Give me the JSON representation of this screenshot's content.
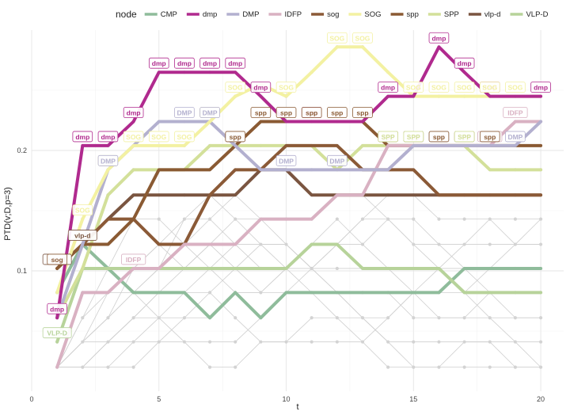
{
  "chart_data": {
    "type": "line",
    "xlabel": "t",
    "ylabel": "PTD(v;D,p=3)",
    "xlim": [
      0,
      20.9
    ],
    "ylim": [
      0.0,
      0.3
    ],
    "x_ticks": [
      0,
      5,
      10,
      15,
      20
    ],
    "y_ticks": [
      0.1,
      0.2
    ],
    "grid": true,
    "legend": {
      "title": "node",
      "placement": "top",
      "entries": [
        {
          "name": "CMP",
          "color": "#8fbc9b"
        },
        {
          "name": "dmp",
          "color": "#b02a8e"
        },
        {
          "name": "DMP",
          "color": "#b3b0cf"
        },
        {
          "name": "IDFP",
          "color": "#d9b1c2"
        },
        {
          "name": "sog",
          "color": "#8b5a37"
        },
        {
          "name": "SOG",
          "color": "#f3f1a2"
        },
        {
          "name": "spp",
          "color": "#8a5a33"
        },
        {
          "name": "SPP",
          "color": "#d3e09a"
        },
        {
          "name": "vlp-d",
          "color": "#7a5540"
        },
        {
          "name": "VLP-D",
          "color": "#b7d39a"
        }
      ]
    },
    "x": [
      1,
      2,
      3,
      4,
      5,
      6,
      7,
      8,
      9,
      10,
      11,
      12,
      13,
      14,
      15,
      16,
      17,
      18,
      19,
      20
    ],
    "series": [
      {
        "name": "dmp",
        "color": "#b02a8e",
        "values": [
          0.061,
          0.204,
          0.204,
          0.224,
          0.265,
          0.265,
          0.265,
          0.265,
          0.245,
          0.224,
          0.224,
          0.224,
          0.224,
          0.245,
          0.245,
          0.286,
          0.265,
          0.245,
          0.245,
          0.245
        ]
      },
      {
        "name": "SOG",
        "color": "#f3f1a2",
        "values": [
          0.082,
          0.143,
          0.184,
          0.204,
          0.204,
          0.204,
          0.224,
          0.245,
          0.255,
          0.245,
          0.265,
          0.286,
          0.286,
          0.265,
          0.245,
          0.245,
          0.245,
          0.245,
          0.245,
          0.245
        ]
      },
      {
        "name": "DMP",
        "color": "#b3b0cf",
        "values": [
          0.061,
          0.122,
          0.184,
          0.204,
          0.224,
          0.224,
          0.224,
          0.204,
          0.184,
          0.184,
          0.184,
          0.184,
          0.184,
          0.184,
          0.204,
          0.204,
          0.204,
          0.204,
          0.204,
          0.224
        ]
      },
      {
        "name": "IDFP",
        "color": "#d9b1c2",
        "values": [
          0.02,
          0.082,
          0.082,
          0.102,
          0.102,
          0.122,
          0.122,
          0.122,
          0.143,
          0.143,
          0.143,
          0.163,
          0.163,
          0.204,
          0.204,
          0.204,
          0.204,
          0.204,
          0.224,
          0.224
        ]
      },
      {
        "name": "spp",
        "color": "#8a5a33",
        "values": [
          0.102,
          0.122,
          0.122,
          0.143,
          0.184,
          0.184,
          0.184,
          0.204,
          0.224,
          0.224,
          0.224,
          0.224,
          0.224,
          0.204,
          0.204,
          0.204,
          0.204,
          0.204,
          0.204,
          0.204
        ]
      },
      {
        "name": "sog",
        "color": "#8b5a37",
        "values": [
          0.102,
          0.122,
          0.143,
          0.143,
          0.122,
          0.122,
          0.163,
          0.184,
          0.184,
          0.204,
          0.204,
          0.204,
          0.184,
          0.184,
          0.184,
          0.163,
          0.163,
          0.163,
          0.163,
          0.163
        ]
      },
      {
        "name": "vlp-d",
        "color": "#7a5540",
        "values": [
          0.102,
          0.122,
          0.143,
          0.163,
          0.163,
          0.163,
          0.163,
          0.163,
          0.184,
          0.184,
          0.163,
          0.163,
          0.163,
          0.163,
          0.163,
          0.163,
          0.163,
          0.163,
          0.163,
          0.163
        ]
      },
      {
        "name": "SPP",
        "color": "#d3e09a",
        "values": [
          0.061,
          0.102,
          0.163,
          0.184,
          0.184,
          0.184,
          0.204,
          0.204,
          0.204,
          0.204,
          0.204,
          0.184,
          0.204,
          0.204,
          0.204,
          0.204,
          0.204,
          0.184,
          0.184,
          0.184
        ]
      },
      {
        "name": "VLP-D",
        "color": "#b7d39a",
        "values": [
          0.041,
          0.102,
          0.102,
          0.102,
          0.102,
          0.102,
          0.102,
          0.102,
          0.102,
          0.102,
          0.122,
          0.122,
          0.102,
          0.102,
          0.102,
          0.102,
          0.082,
          0.082,
          0.082,
          0.082
        ]
      },
      {
        "name": "CMP",
        "color": "#8fbc9b",
        "values": [
          0.082,
          0.122,
          0.102,
          0.082,
          0.082,
          0.082,
          0.061,
          0.082,
          0.061,
          0.082,
          0.082,
          0.082,
          0.082,
          0.082,
          0.082,
          0.082,
          0.102,
          0.102,
          0.102,
          0.102
        ]
      }
    ],
    "point_labels": [
      {
        "series": "dmp",
        "text": "dmp",
        "points": [
          1,
          2,
          3,
          4,
          5,
          6,
          7,
          8,
          9,
          11,
          14,
          16,
          17,
          18,
          20
        ]
      },
      {
        "series": "SOG",
        "text": "SOG",
        "points": [
          2,
          3,
          4,
          5,
          6,
          7,
          8,
          10,
          12,
          13,
          15,
          16,
          17,
          18,
          19
        ]
      },
      {
        "series": "DMP",
        "text": "DMP",
        "points": [
          3,
          6,
          7,
          8,
          10,
          12,
          15,
          16,
          18,
          19
        ]
      },
      {
        "series": "IDFP",
        "text": "IDFP",
        "points": [
          4,
          18,
          19
        ]
      },
      {
        "series": "spp",
        "text": "spp",
        "points": [
          8,
          9,
          10,
          11,
          12,
          13,
          14,
          15,
          16,
          17,
          18
        ]
      },
      {
        "series": "vlp-d",
        "text": "vlp-d",
        "points": [
          1,
          2
        ]
      },
      {
        "series": "SPP",
        "text": "SPP",
        "points": [
          14,
          15,
          17
        ]
      },
      {
        "series": "VLP-D",
        "text": "VLP-D",
        "points": [
          1
        ]
      },
      {
        "series": "sog",
        "text": "sog",
        "points": [
          1
        ]
      }
    ],
    "background_lines": [
      [
        0.02,
        0.041,
        0.082,
        0.102,
        0.122,
        0.102,
        0.122,
        0.102,
        0.082,
        0.102,
        0.122,
        0.143,
        0.122,
        0.102,
        0.082,
        0.061,
        0.061,
        0.061,
        0.061,
        0.061
      ],
      [
        0.02,
        0.041,
        0.061,
        0.082,
        0.102,
        0.122,
        0.143,
        0.163,
        0.143,
        0.122,
        0.102,
        0.082,
        0.082,
        0.082,
        0.061,
        0.061,
        0.061,
        0.082,
        0.082,
        0.082
      ],
      [
        0.02,
        0.02,
        0.041,
        0.061,
        0.082,
        0.102,
        0.122,
        0.143,
        0.143,
        0.143,
        0.143,
        0.163,
        0.163,
        0.143,
        0.122,
        0.102,
        0.102,
        0.102,
        0.102,
        0.102
      ],
      [
        0.02,
        0.02,
        0.02,
        0.041,
        0.041,
        0.061,
        0.082,
        0.102,
        0.122,
        0.122,
        0.102,
        0.082,
        0.061,
        0.041,
        0.041,
        0.041,
        0.041,
        0.041,
        0.041,
        0.041
      ],
      [
        0.02,
        0.041,
        0.061,
        0.082,
        0.061,
        0.041,
        0.041,
        0.041,
        0.061,
        0.082,
        0.102,
        0.122,
        0.143,
        0.143,
        0.122,
        0.122,
        0.102,
        0.082,
        0.061,
        0.061
      ],
      [
        0.02,
        0.061,
        0.102,
        0.143,
        0.143,
        0.122,
        0.102,
        0.082,
        0.082,
        0.082,
        0.082,
        0.082,
        0.061,
        0.061,
        0.082,
        0.102,
        0.122,
        0.143,
        0.143,
        0.143
      ],
      [
        0.02,
        0.02,
        0.041,
        0.041,
        0.061,
        0.061,
        0.061,
        0.082,
        0.082,
        0.102,
        0.122,
        0.122,
        0.122,
        0.143,
        0.143,
        0.122,
        0.122,
        0.122,
        0.122,
        0.122
      ],
      [
        0.02,
        0.041,
        0.041,
        0.061,
        0.082,
        0.082,
        0.102,
        0.122,
        0.122,
        0.122,
        0.102,
        0.102,
        0.102,
        0.102,
        0.102,
        0.102,
        0.082,
        0.061,
        0.041,
        0.02
      ],
      [
        0.02,
        0.02,
        0.02,
        0.02,
        0.041,
        0.041,
        0.02,
        0.02,
        0.041,
        0.041,
        0.061,
        0.061,
        0.061,
        0.041,
        0.02,
        0.02,
        0.041,
        0.041,
        0.02,
        0.02
      ],
      [
        0.02,
        0.061,
        0.082,
        0.082,
        0.102,
        0.143,
        0.163,
        0.143,
        0.122,
        0.102,
        0.102,
        0.122,
        0.143,
        0.163,
        0.163,
        0.143,
        0.143,
        0.143,
        0.122,
        0.122
      ],
      [
        0.02,
        0.041,
        0.061,
        0.102,
        0.122,
        0.143,
        0.143,
        0.122,
        0.102,
        0.102,
        0.082,
        0.061,
        0.041,
        0.02,
        0.02,
        0.02,
        0.02,
        0.02,
        0.02,
        0.02
      ],
      [
        0.02,
        0.02,
        0.041,
        0.061,
        0.061,
        0.082,
        0.082,
        0.061,
        0.041,
        0.041,
        0.041,
        0.041,
        0.041,
        0.061,
        0.082,
        0.082,
        0.082,
        0.102,
        0.122,
        0.143
      ]
    ]
  }
}
